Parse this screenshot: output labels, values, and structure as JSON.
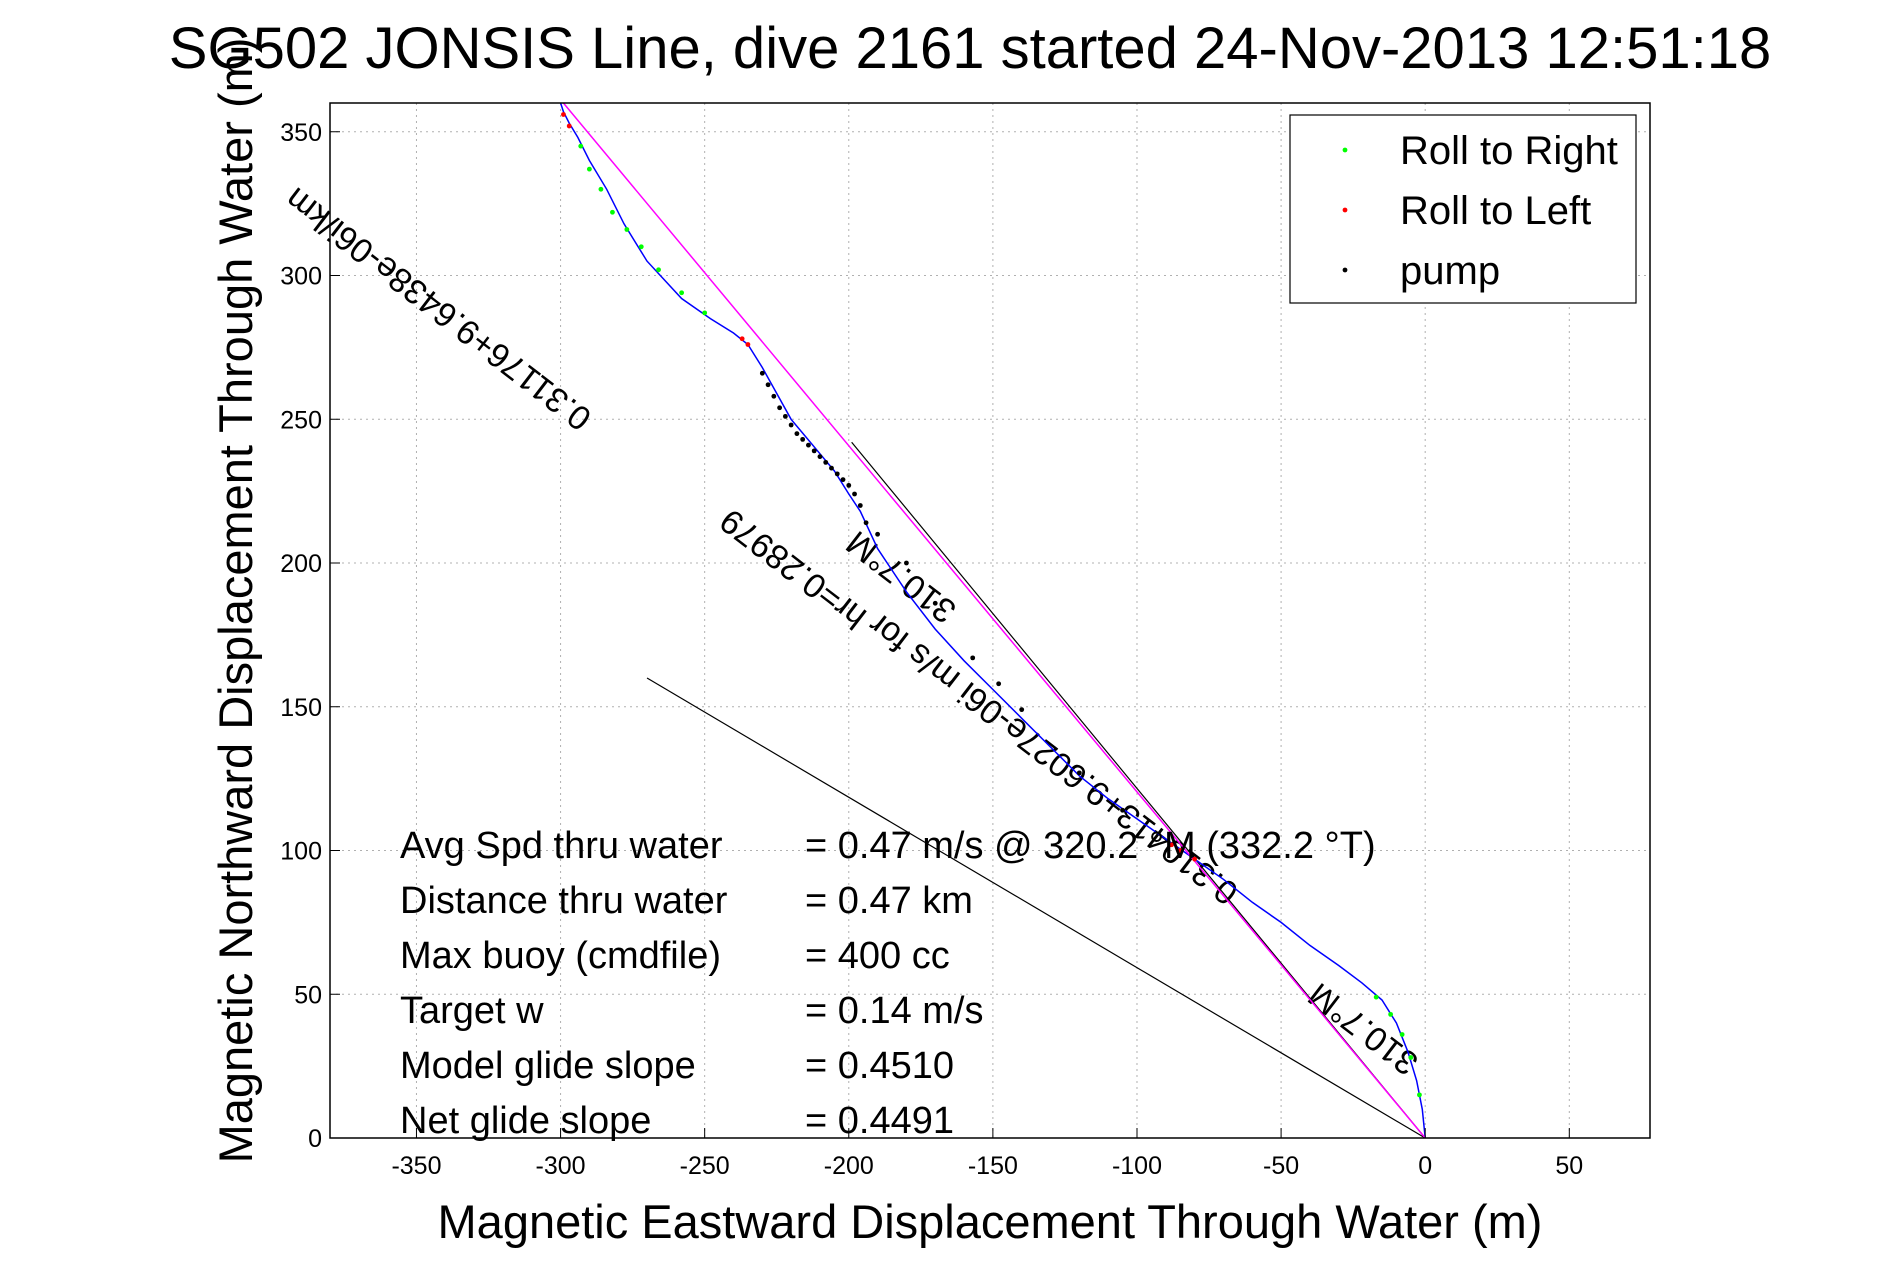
{
  "chart_data": {
    "type": "line",
    "title": "SG502 JONSIS Line, dive 2161 started 24-Nov-2013 12:51:18",
    "xlabel": "Magnetic Eastward Displacement Through Water (m)",
    "ylabel": "Magnetic Northward Displacement Through Water (m)",
    "xlim": [
      -380,
      78
    ],
    "ylim": [
      0,
      360
    ],
    "xticks": [
      -350,
      -300,
      -250,
      -200,
      -150,
      -100,
      -50,
      0,
      50
    ],
    "yticks": [
      0,
      50,
      100,
      150,
      200,
      250,
      300,
      350
    ],
    "xtick_labels": [
      "-350",
      "-300",
      "-250",
      "-200",
      "-150",
      "-100",
      "-50",
      "0",
      "50"
    ],
    "ytick_labels": [
      "0",
      "50",
      "100",
      "150",
      "200",
      "250",
      "300",
      "350"
    ],
    "grid": true,
    "legend_position": "top-right",
    "legend": [
      {
        "label": "Roll to Right",
        "color": "#00ff00"
      },
      {
        "label": "Roll to Left",
        "color": "#ff0000"
      },
      {
        "label": "pump",
        "color": "#000000"
      }
    ],
    "series": [
      {
        "name": "track",
        "color": "#0000ff",
        "x": [
          0,
          -1,
          -3,
          -6,
          -10,
          -15,
          -22,
          -30,
          -40,
          -50,
          -60,
          -70,
          -80,
          -90,
          -100,
          -110,
          -120,
          -130,
          -140,
          -150,
          -160,
          -170,
          -180,
          -190,
          -196,
          -200,
          -205,
          -210,
          -215,
          -220,
          -225,
          -230,
          -235,
          -240,
          -248,
          -258,
          -270,
          -278,
          -284,
          -290,
          -294,
          -297,
          -299,
          -300
        ],
        "y": [
          0,
          10,
          20,
          30,
          40,
          48,
          54,
          60,
          67,
          75,
          82,
          90,
          97,
          104,
          111,
          118,
          126,
          136,
          146,
          156,
          166,
          177,
          190,
          205,
          218,
          224,
          232,
          238,
          244,
          250,
          259,
          268,
          276,
          280,
          285,
          292,
          305,
          318,
          330,
          340,
          348,
          353,
          357,
          360
        ]
      },
      {
        "name": "Roll to Right",
        "color": "#00ff00",
        "x": [
          -2,
          -5,
          -8,
          -12,
          -17,
          -250,
          -258,
          -266,
          -272,
          -277,
          -282,
          -286,
          -290,
          -293
        ],
        "y": [
          15,
          28,
          36,
          43,
          49,
          287,
          294,
          302,
          310,
          316,
          322,
          330,
          337,
          345
        ]
      },
      {
        "name": "Roll to Left",
        "color": "#ff0000",
        "x": [
          -80,
          -85,
          -88,
          -235,
          -237,
          -297,
          -299
        ],
        "y": [
          97,
          100,
          102,
          276,
          278,
          352,
          356
        ]
      },
      {
        "name": "pump",
        "color": "#000000",
        "x": [
          -194,
          -196,
          -198,
          -200,
          -202,
          -204,
          -206,
          -208,
          -210,
          -212,
          -214,
          -216,
          -218,
          -220,
          -222,
          -224,
          -226,
          -228,
          -230,
          -190,
          -180,
          -170,
          -157,
          -148,
          -140,
          -120,
          -105
        ],
        "y": [
          214,
          220,
          224,
          227,
          229,
          231,
          233,
          235,
          237,
          239,
          241,
          243,
          245,
          248,
          251,
          254,
          258,
          262,
          266,
          210,
          200,
          186,
          167,
          158,
          149,
          127,
          114
        ]
      },
      {
        "name": "model line",
        "color": "#ff00ff",
        "x": [
          0,
          -299
        ],
        "y": [
          0,
          360
        ]
      }
    ],
    "reference_lines": [
      {
        "color": "#000000",
        "x": [
          0,
          -199
        ],
        "y": [
          0,
          242
        ]
      },
      {
        "color": "#000000",
        "x": [
          0,
          -270
        ],
        "y": [
          0,
          160
        ]
      }
    ],
    "text_annotations": {
      "rot1": "0.31176+9.6438e-06i/km",
      "rot1b": "hr=0.28979",
      "rot2": "310.7°M",
      "rot3": "0.310413+9.6027e-06i m/s for",
      "rot4": "310.7°M"
    },
    "stats": [
      {
        "label": "Avg Spd thru water",
        "value": "=  0.47 m/s @ 320.2 °M (332.2 °T)"
      },
      {
        "label": "Distance thru water",
        "value": "=  0.47 km"
      },
      {
        "label": "Max buoy (cmdfile)",
        "value": "= 400 cc"
      },
      {
        "label": "Target w",
        "value": "= 0.14 m/s"
      },
      {
        "label": "Model glide slope",
        "value": "= 0.4510"
      },
      {
        "label": "Net glide slope",
        "value": "= 0.4491"
      }
    ]
  }
}
